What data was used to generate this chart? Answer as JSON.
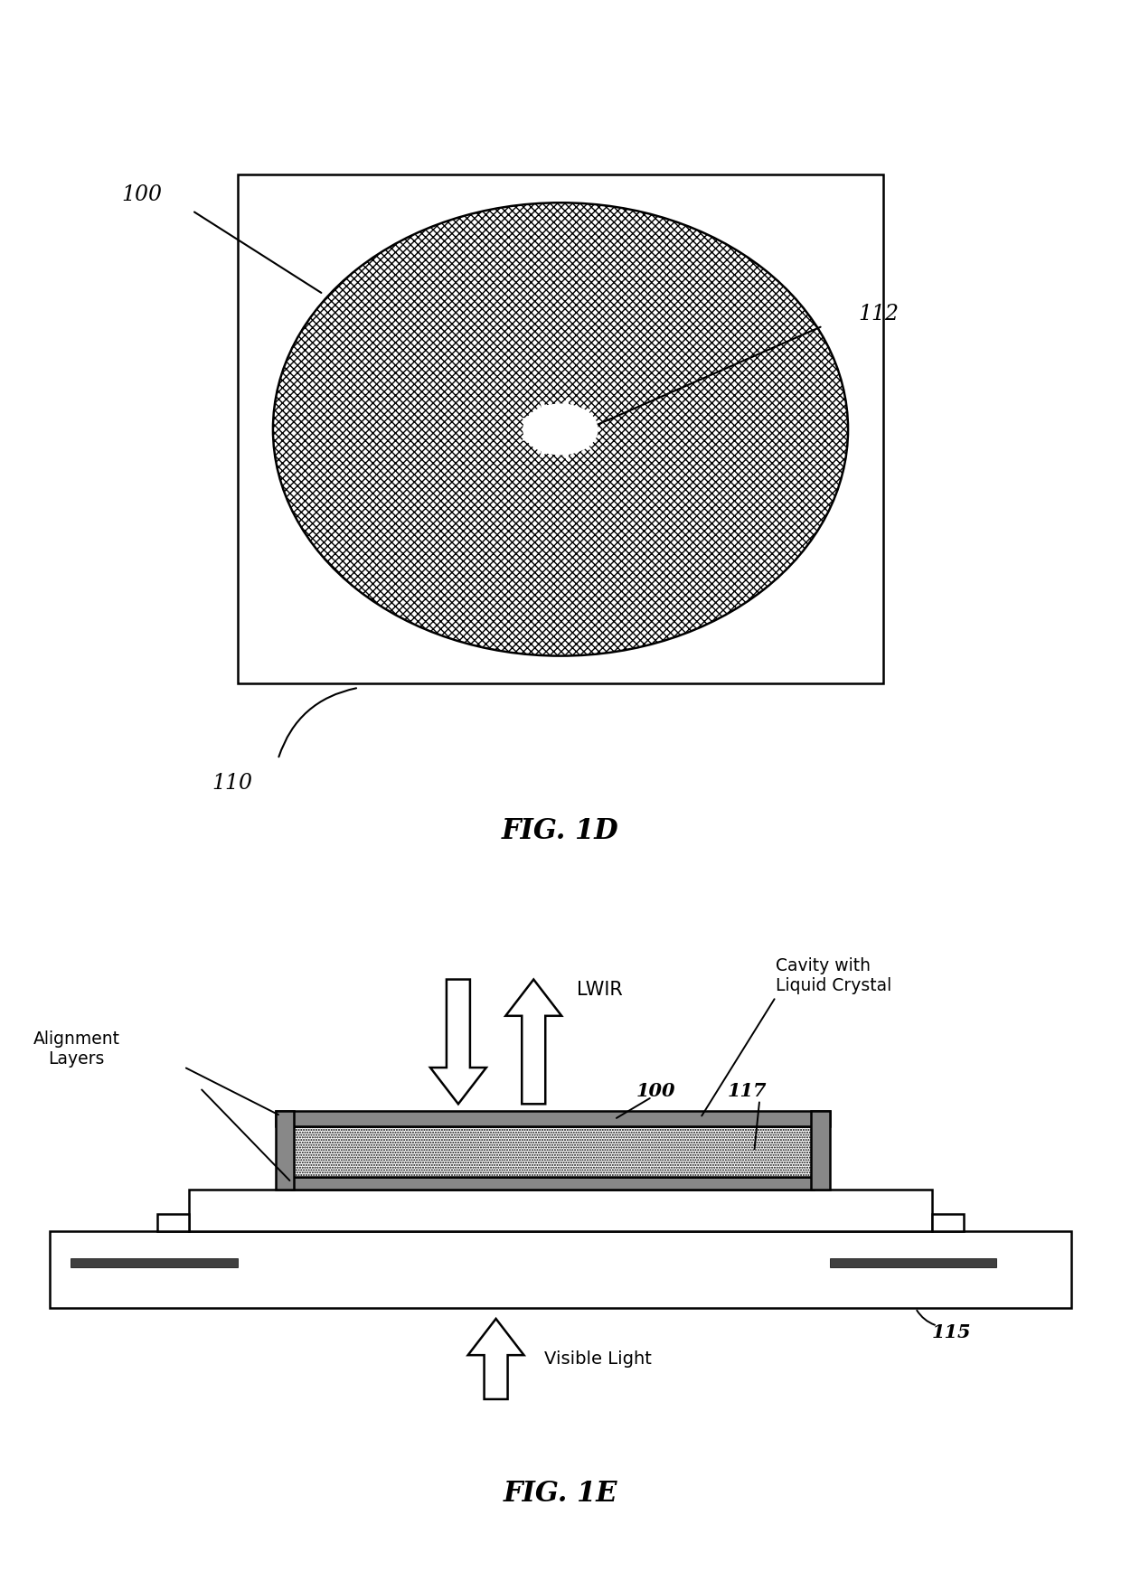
{
  "fig_width": 12.4,
  "fig_height": 17.59,
  "dpi": 100,
  "background_color": "#ffffff",
  "line_color": "#000000",
  "fig1d_label": "FIG. 1D",
  "fig1e_label": "FIG. 1E",
  "label_100_1d": "100",
  "label_110": "110",
  "label_112": "112",
  "label_100_1e": "100",
  "label_117": "117",
  "label_115": "115",
  "label_alignment": "Alignment\nLayers",
  "label_lwir": "LWIR",
  "label_cavity": "Cavity with\nLiquid Crystal",
  "label_visible": "Visible Light"
}
